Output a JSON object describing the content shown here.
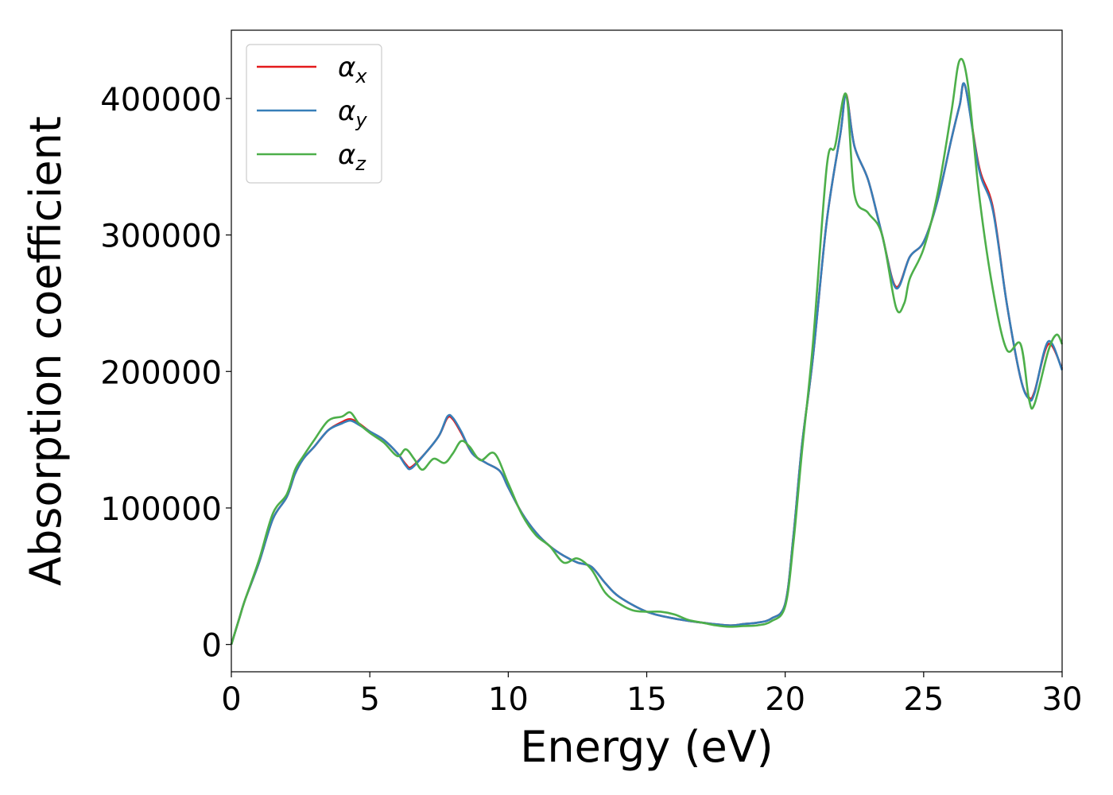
{
  "chart_data": {
    "type": "line",
    "xlabel": "Energy (eV)",
    "ylabel": "Absorption coefficient",
    "xlim": [
      0,
      30
    ],
    "ylim": [
      -20000,
      450000
    ],
    "xticks": [
      0,
      5,
      10,
      15,
      20,
      25,
      30
    ],
    "xtick_labels": [
      "0",
      "5",
      "10",
      "15",
      "20",
      "25",
      "30"
    ],
    "yticks": [
      0,
      100000,
      200000,
      300000,
      400000
    ],
    "ytick_labels": [
      "0",
      "100000",
      "200000",
      "300000",
      "400000"
    ],
    "grid": false,
    "legend_position": "top-left",
    "series": [
      {
        "name": "αx",
        "legend_base": "α",
        "legend_sub": "x",
        "color": "#e41a1c",
        "points": [
          [
            0,
            0
          ],
          [
            0.3,
            20000
          ],
          [
            0.5,
            33000
          ],
          [
            1,
            60000
          ],
          [
            1.5,
            92000
          ],
          [
            2,
            108000
          ],
          [
            2.3,
            125000
          ],
          [
            2.6,
            136000
          ],
          [
            3,
            145000
          ],
          [
            3.5,
            157000
          ],
          [
            4,
            163000
          ],
          [
            4.3,
            165000
          ],
          [
            4.6,
            162000
          ],
          [
            5,
            156000
          ],
          [
            5.5,
            150000
          ],
          [
            6,
            140000
          ],
          [
            6.3,
            132000
          ],
          [
            6.5,
            130000
          ],
          [
            7,
            140000
          ],
          [
            7.5,
            153000
          ],
          [
            7.8,
            166000
          ],
          [
            8,
            165000
          ],
          [
            8.3,
            155000
          ],
          [
            8.7,
            140000
          ],
          [
            9.2,
            133000
          ],
          [
            9.7,
            127000
          ],
          [
            10,
            115000
          ],
          [
            10.5,
            96000
          ],
          [
            11,
            82000
          ],
          [
            11.5,
            72000
          ],
          [
            12,
            65000
          ],
          [
            12.5,
            60000
          ],
          [
            13,
            57000
          ],
          [
            13.5,
            45000
          ],
          [
            14,
            35000
          ],
          [
            15,
            24000
          ],
          [
            16,
            19000
          ],
          [
            17,
            16000
          ],
          [
            18,
            14000
          ],
          [
            18.5,
            15000
          ],
          [
            19,
            16000
          ],
          [
            19.5,
            19000
          ],
          [
            20,
            30000
          ],
          [
            20.3,
            80000
          ],
          [
            20.6,
            145000
          ],
          [
            21,
            210000
          ],
          [
            21.5,
            310000
          ],
          [
            22,
            375000
          ],
          [
            22.2,
            403000
          ],
          [
            22.5,
            365000
          ],
          [
            23,
            340000
          ],
          [
            23.5,
            300000
          ],
          [
            24,
            262000
          ],
          [
            24.5,
            284000
          ],
          [
            25,
            295000
          ],
          [
            25.5,
            325000
          ],
          [
            26,
            370000
          ],
          [
            26.3,
            395000
          ],
          [
            26.5,
            409000
          ],
          [
            27,
            350000
          ],
          [
            27.5,
            320000
          ],
          [
            28,
            250000
          ],
          [
            28.5,
            195000
          ],
          [
            28.8,
            181000
          ],
          [
            29,
            185000
          ],
          [
            29.5,
            220000
          ],
          [
            30,
            202000
          ]
        ]
      },
      {
        "name": "αy",
        "legend_base": "α",
        "legend_sub": "y",
        "color": "#377eb8",
        "points": [
          [
            0,
            0
          ],
          [
            0.3,
            20000
          ],
          [
            0.5,
            33000
          ],
          [
            1,
            60000
          ],
          [
            1.5,
            92000
          ],
          [
            2,
            108000
          ],
          [
            2.3,
            125000
          ],
          [
            2.6,
            136000
          ],
          [
            3,
            145000
          ],
          [
            3.5,
            157000
          ],
          [
            4,
            162000
          ],
          [
            4.3,
            164000
          ],
          [
            4.6,
            161000
          ],
          [
            5,
            156000
          ],
          [
            5.5,
            150000
          ],
          [
            6,
            140000
          ],
          [
            6.3,
            131000
          ],
          [
            6.5,
            129000
          ],
          [
            7,
            140000
          ],
          [
            7.5,
            153000
          ],
          [
            7.8,
            167000
          ],
          [
            8,
            166000
          ],
          [
            8.3,
            156000
          ],
          [
            8.7,
            140000
          ],
          [
            9.2,
            133000
          ],
          [
            9.7,
            127000
          ],
          [
            10,
            115000
          ],
          [
            10.5,
            96000
          ],
          [
            11,
            82000
          ],
          [
            11.5,
            72000
          ],
          [
            12,
            65000
          ],
          [
            12.5,
            60000
          ],
          [
            13,
            57000
          ],
          [
            13.5,
            45000
          ],
          [
            14,
            35000
          ],
          [
            15,
            24000
          ],
          [
            16,
            19000
          ],
          [
            17,
            16000
          ],
          [
            18,
            14000
          ],
          [
            18.5,
            15000
          ],
          [
            19,
            16000
          ],
          [
            19.5,
            19000
          ],
          [
            20,
            30000
          ],
          [
            20.3,
            80000
          ],
          [
            20.6,
            145000
          ],
          [
            21,
            210000
          ],
          [
            21.5,
            310000
          ],
          [
            22,
            375000
          ],
          [
            22.2,
            402000
          ],
          [
            22.5,
            365000
          ],
          [
            23,
            340000
          ],
          [
            23.5,
            300000
          ],
          [
            24,
            261000
          ],
          [
            24.5,
            284000
          ],
          [
            25,
            295000
          ],
          [
            25.5,
            325000
          ],
          [
            26,
            370000
          ],
          [
            26.3,
            395000
          ],
          [
            26.5,
            409000
          ],
          [
            27,
            348000
          ],
          [
            27.5,
            318000
          ],
          [
            28,
            250000
          ],
          [
            28.5,
            195000
          ],
          [
            28.8,
            180000
          ],
          [
            29,
            184000
          ],
          [
            29.5,
            222000
          ],
          [
            30,
            201000
          ]
        ]
      },
      {
        "name": "αz",
        "legend_base": "α",
        "legend_sub": "z",
        "color": "#4daf4a",
        "points": [
          [
            0,
            0
          ],
          [
            0.3,
            20000
          ],
          [
            0.5,
            33000
          ],
          [
            1,
            62000
          ],
          [
            1.5,
            96000
          ],
          [
            2,
            110000
          ],
          [
            2.3,
            128000
          ],
          [
            2.6,
            138000
          ],
          [
            3,
            150000
          ],
          [
            3.5,
            164000
          ],
          [
            4,
            167000
          ],
          [
            4.3,
            170000
          ],
          [
            4.6,
            162000
          ],
          [
            5,
            155000
          ],
          [
            5.5,
            148000
          ],
          [
            6,
            138000
          ],
          [
            6.3,
            143000
          ],
          [
            6.6,
            136000
          ],
          [
            6.9,
            128000
          ],
          [
            7.3,
            136000
          ],
          [
            7.7,
            133000
          ],
          [
            8,
            140000
          ],
          [
            8.3,
            149000
          ],
          [
            8.6,
            145000
          ],
          [
            9,
            135000
          ],
          [
            9.5,
            140000
          ],
          [
            10,
            118000
          ],
          [
            10.5,
            95000
          ],
          [
            11,
            80000
          ],
          [
            11.5,
            72000
          ],
          [
            12,
            60000
          ],
          [
            12.5,
            63000
          ],
          [
            13,
            55000
          ],
          [
            13.5,
            38000
          ],
          [
            14,
            30000
          ],
          [
            14.5,
            25000
          ],
          [
            15,
            24000
          ],
          [
            15.5,
            24000
          ],
          [
            16,
            22000
          ],
          [
            16.5,
            18000
          ],
          [
            17,
            16000
          ],
          [
            17.5,
            14000
          ],
          [
            18,
            13000
          ],
          [
            18.5,
            13500
          ],
          [
            19,
            14000
          ],
          [
            19.5,
            17000
          ],
          [
            20,
            28000
          ],
          [
            20.3,
            75000
          ],
          [
            20.6,
            140000
          ],
          [
            21,
            220000
          ],
          [
            21.5,
            350000
          ],
          [
            21.8,
            365000
          ],
          [
            22.2,
            403000
          ],
          [
            22.5,
            330000
          ],
          [
            23,
            316000
          ],
          [
            23.5,
            300000
          ],
          [
            24,
            247000
          ],
          [
            24.3,
            250000
          ],
          [
            24.5,
            268000
          ],
          [
            25,
            290000
          ],
          [
            25.5,
            330000
          ],
          [
            26,
            390000
          ],
          [
            26.3,
            428000
          ],
          [
            26.6,
            410000
          ],
          [
            27,
            330000
          ],
          [
            27.5,
            260000
          ],
          [
            28,
            216000
          ],
          [
            28.5,
            220000
          ],
          [
            28.8,
            180000
          ],
          [
            29,
            176000
          ],
          [
            29.5,
            215000
          ],
          [
            29.8,
            227000
          ],
          [
            30,
            220000
          ]
        ]
      }
    ]
  }
}
